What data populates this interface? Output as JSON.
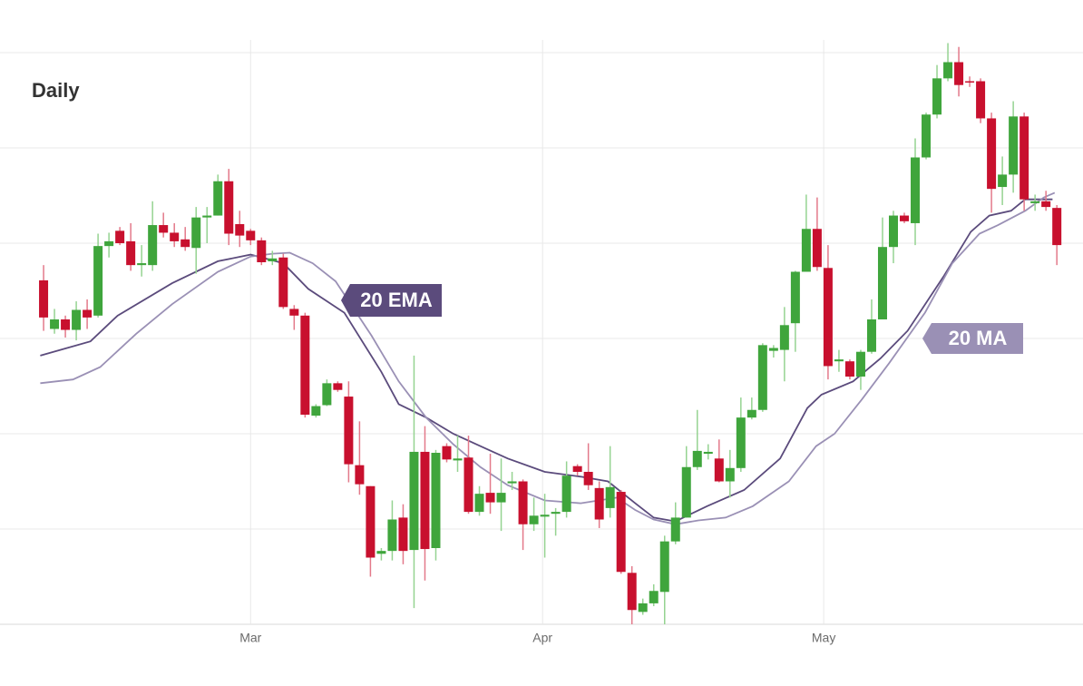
{
  "chart_data": {
    "type": "candlestick",
    "title": "Daily",
    "x": [
      0,
      1,
      2,
      3,
      4,
      5,
      6,
      7,
      8,
      9,
      10,
      11,
      12,
      13,
      14,
      15,
      16,
      17,
      18,
      19,
      20,
      21,
      22,
      23,
      24,
      25,
      26,
      27,
      28,
      29,
      30,
      31,
      32,
      33,
      34,
      35,
      36,
      37,
      38,
      39,
      40,
      41,
      42,
      43,
      44,
      45,
      46,
      47,
      48,
      49,
      50,
      51,
      52,
      53,
      54,
      55,
      56,
      57,
      58,
      59,
      60,
      61,
      62,
      63,
      64,
      65,
      66,
      67,
      68,
      69,
      70,
      71,
      72,
      73,
      74,
      75,
      76,
      77,
      78,
      79,
      80,
      81,
      82,
      83,
      84,
      85,
      86,
      87,
      88,
      89,
      90,
      91,
      92,
      93
    ],
    "open": [
      36.1,
      31.0,
      32.0,
      30.9,
      33.0,
      32.4,
      39.7,
      41.3,
      40.2,
      37.7,
      37.7,
      41.9,
      41.1,
      40.4,
      39.5,
      42.7,
      42.9,
      46.5,
      42.0,
      41.3,
      40.3,
      38.1,
      38.5,
      33.1,
      32.4,
      21.9,
      23.0,
      25.3,
      23.9,
      16.7,
      14.5,
      7.4,
      7.7,
      11.2,
      7.8,
      18.1,
      8.0,
      18.7,
      17.2,
      17.5,
      11.8,
      13.8,
      12.8,
      14.8,
      15.0,
      10.5,
      11.3,
      11.6,
      11.8,
      16.6,
      16.0,
      14.3,
      12.2,
      13.9,
      5.4,
      1.3,
      2.2,
      3.4,
      8.7,
      11.2,
      16.5,
      17.9,
      17.4,
      15.0,
      16.4,
      21.7,
      22.5,
      28.7,
      28.8,
      31.6,
      37.0,
      41.5,
      37.4,
      27.6,
      27.6,
      26.0,
      28.6,
      32.0,
      39.6,
      42.9,
      42.1,
      49.0,
      53.5,
      57.3,
      59.0,
      57.0,
      57.0,
      53.1,
      45.9,
      47.2,
      53.3,
      44.2,
      44.4,
      43.7
    ],
    "high": [
      37.7,
      33.1,
      32.4,
      33.9,
      34.1,
      41.0,
      41.1,
      41.7,
      42.1,
      39.8,
      44.4,
      43.2,
      42.1,
      41.7,
      43.8,
      43.8,
      47.2,
      47.8,
      43.4,
      41.5,
      40.6,
      39.2,
      38.9,
      33.5,
      32.7,
      23.1,
      25.7,
      25.5,
      25.5,
      21.3,
      14.5,
      8.0,
      13.0,
      12.6,
      28.2,
      20.8,
      18.3,
      19.0,
      19.8,
      19.8,
      14.5,
      17.9,
      17.4,
      16.0,
      15.2,
      13.3,
      13.7,
      12.2,
      17.1,
      16.8,
      19.0,
      15.0,
      18.7,
      14.1,
      6.1,
      2.7,
      4.2,
      9.3,
      12.8,
      18.7,
      22.5,
      18.9,
      19.4,
      18.3,
      23.8,
      23.8,
      29.5,
      29.3,
      33.3,
      37.1,
      45.1,
      44.8,
      39.8,
      28.8,
      27.8,
      28.8,
      34.1,
      42.7,
      43.4,
      43.2,
      51.0,
      53.7,
      58.7,
      61.0,
      60.6,
      57.5,
      57.3,
      53.7,
      49.1,
      54.9,
      53.7,
      45.1,
      45.5,
      44.0
    ],
    "low": [
      30.8,
      30.5,
      30.1,
      29.8,
      31.0,
      32.2,
      38.5,
      39.8,
      37.1,
      36.5,
      37.1,
      40.6,
      39.6,
      39.2,
      36.8,
      40.0,
      42.9,
      39.8,
      39.6,
      39.8,
      37.7,
      37.7,
      33.1,
      30.9,
      21.7,
      21.7,
      22.9,
      24.4,
      14.9,
      13.6,
      5.0,
      6.7,
      6.7,
      6.3,
      1.7,
      4.6,
      6.7,
      17.0,
      16.0,
      11.6,
      11.4,
      11.6,
      9.8,
      14.1,
      7.8,
      9.8,
      7.0,
      9.3,
      11.2,
      15.6,
      14.1,
      10.1,
      11.2,
      5.3,
      0,
      1.0,
      1.9,
      0,
      8.4,
      11.2,
      16.2,
      17.3,
      14.9,
      13.3,
      16.0,
      21.5,
      22.3,
      28.0,
      25.5,
      28.6,
      37.0,
      37.1,
      25.7,
      26.5,
      25.7,
      24.6,
      28.4,
      32.0,
      37.9,
      42.1,
      39.8,
      48.8,
      53.1,
      57.0,
      55.4,
      56.4,
      52.6,
      43.2,
      44.0,
      45.3,
      43.4,
      43.4,
      43.4,
      37.7
    ],
    "close": [
      32.2,
      32.0,
      30.9,
      33.0,
      32.2,
      39.7,
      40.2,
      40.0,
      37.7,
      37.9,
      41.9,
      41.1,
      40.2,
      39.6,
      42.7,
      42.9,
      46.5,
      41.0,
      40.8,
      40.3,
      38.0,
      38.4,
      33.3,
      32.4,
      22.0,
      22.9,
      25.3,
      24.6,
      16.8,
      14.7,
      7.0,
      7.7,
      11.0,
      7.7,
      18.1,
      7.9,
      18.0,
      17.3,
      17.4,
      11.8,
      13.7,
      12.8,
      13.8,
      15.0,
      10.5,
      11.4,
      11.5,
      11.8,
      15.6,
      16.0,
      14.6,
      11.0,
      14.4,
      5.5,
      1.5,
      2.2,
      3.5,
      8.7,
      11.2,
      16.5,
      18.2,
      18.1,
      15.0,
      16.4,
      21.7,
      22.5,
      29.3,
      29.0,
      31.4,
      37.0,
      41.5,
      37.5,
      27.1,
      27.8,
      26.0,
      28.6,
      32.0,
      39.6,
      42.9,
      42.3,
      49.0,
      53.5,
      57.3,
      59.0,
      56.6,
      56.9,
      53.1,
      45.7,
      47.2,
      53.3,
      44.6,
      44.4,
      43.8,
      39.8
    ],
    "up_color": "#3fa53c",
    "down_color": "#c8102e",
    "up_wick_color": "#95d391",
    "down_wick_color": "#e3798a",
    "lines": [
      {
        "name": "20 EMA",
        "color": "#5b4b7c",
        "x": [
          -0.3,
          4.3,
          6.8,
          11.8,
          16.0,
          19.0,
          21.0,
          22.0,
          24.3,
          27.6,
          31.0,
          32.6,
          35.1,
          37.6,
          40.1,
          42.6,
          46.0,
          49.3,
          51.8,
          54.3,
          56.0,
          58.0,
          60.9,
          64.3,
          67.6,
          70.1,
          71.4,
          74.3,
          76.8,
          79.3,
          82.6,
          85.1,
          86.8,
          88.8,
          90.1,
          92.6
        ],
        "values": [
          28.2,
          29.7,
          32.4,
          35.8,
          38.1,
          38.8,
          38.2,
          37.9,
          35.2,
          32.7,
          26.5,
          23.1,
          21.7,
          20.0,
          18.7,
          17.4,
          16.0,
          15.5,
          15.0,
          12.7,
          11.2,
          10.8,
          12.4,
          14.1,
          17.4,
          22.7,
          24.1,
          25.5,
          27.9,
          30.8,
          36.5,
          41.2,
          42.9,
          43.4,
          44.6,
          44.6
        ]
      },
      {
        "name": "20 MA",
        "color": "#9a90b5",
        "x": [
          -0.3,
          2.7,
          5.2,
          8.5,
          11.8,
          16.0,
          19.0,
          21.0,
          22.6,
          24.7,
          26.8,
          30.1,
          32.6,
          35.1,
          37.6,
          40.1,
          42.6,
          46.0,
          49.3,
          52.6,
          54.3,
          56.0,
          58.0,
          60.1,
          62.6,
          65.1,
          68.4,
          70.9,
          72.6,
          75.1,
          77.6,
          80.9,
          83.4,
          85.9,
          87.6,
          90.1,
          91.8,
          92.8
        ],
        "values": [
          25.3,
          25.7,
          27.0,
          30.5,
          33.6,
          37.0,
          38.6,
          38.9,
          39.0,
          37.9,
          36.0,
          30.3,
          25.5,
          21.7,
          18.9,
          16.5,
          14.6,
          13.0,
          12.7,
          13.3,
          12.0,
          11.0,
          10.5,
          10.9,
          11.2,
          12.4,
          15.0,
          18.7,
          20.0,
          23.6,
          27.4,
          32.7,
          37.9,
          41.0,
          41.9,
          43.4,
          44.8,
          45.3
        ]
      }
    ],
    "xlim": [
      -4,
      95.4
    ],
    "xticks": [
      {
        "value": 19.0,
        "label": "Mar"
      },
      {
        "value": 45.8,
        "label": "Apr"
      },
      {
        "value": 71.6,
        "label": "May"
      }
    ],
    "ylim": [
      0,
      62
    ],
    "yticks": [
      0,
      10,
      20,
      30,
      40,
      50,
      60
    ],
    "grid": true
  }
}
